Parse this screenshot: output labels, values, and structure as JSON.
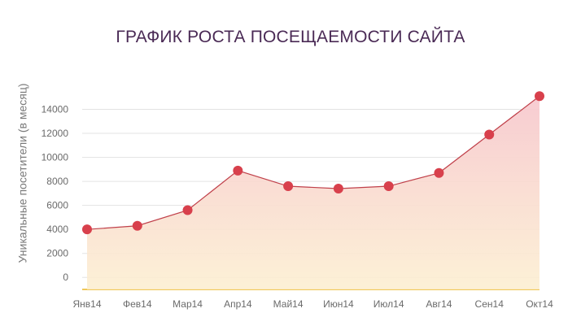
{
  "chart_data": {
    "type": "area",
    "title": "ГРАФИК РОСТА ПОСЕЩАЕМОСТИ САЙТА",
    "ylabel": "Уникальные посетители (в месяц)",
    "xlabel": "",
    "categories": [
      "Янв14",
      "Фев14",
      "Мар14",
      "Апр14",
      "Май14",
      "Июн14",
      "Июл14",
      "Авг14",
      "Сен14",
      "Окт14"
    ],
    "series": [
      {
        "values": [
          4000,
          4300,
          5600,
          8900,
          7600,
          7400,
          7600,
          8700,
          11900,
          15100
        ]
      }
    ],
    "y_ticks": [
      "0",
      "2000",
      "4000",
      "6000",
      "8000",
      "10000",
      "12000",
      "14000"
    ],
    "ylim": [
      -1000,
      16000
    ],
    "grid": true,
    "colors": {
      "line": "#c0404a",
      "marker": "#d8404c",
      "fill_top": "#f7c9cf",
      "fill_bottom": "#fcefd2",
      "baseline": "#f0c85a",
      "grid": "#e3e3e3",
      "title": "#4a2a55"
    }
  }
}
